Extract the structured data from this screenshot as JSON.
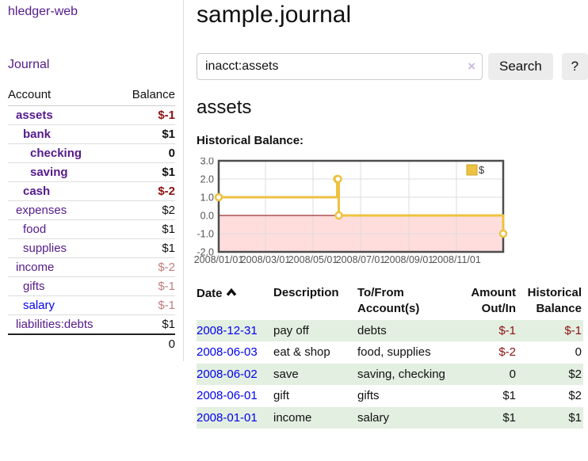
{
  "app": {
    "brand": "hledger-web",
    "nav_journal": "Journal"
  },
  "colors": {
    "purple": "#551a8b",
    "blue": "#0000ee",
    "negative_red": "#8b1111",
    "faded_red": "#c27d7d",
    "stripe_green": "#e3efe1",
    "chart_yellow": "#edc240"
  },
  "sidebar": {
    "columns": {
      "account": "Account",
      "balance": "Balance"
    },
    "accounts": [
      {
        "name": "assets",
        "depth": 0,
        "bold": true,
        "balance": "$-1",
        "balance_style": "neg-bold"
      },
      {
        "name": "bank",
        "depth": 1,
        "bold": true,
        "balance": "$1",
        "balance_style": "pos-bold"
      },
      {
        "name": "checking",
        "depth": 2,
        "bold": true,
        "balance": "0",
        "balance_style": "pos-bold"
      },
      {
        "name": "saving",
        "depth": 2,
        "bold": true,
        "balance": "$1",
        "balance_style": "pos-bold"
      },
      {
        "name": "cash",
        "depth": 1,
        "bold": true,
        "balance": "$-2",
        "balance_style": "neg-bold"
      },
      {
        "name": "expenses",
        "depth": 0,
        "bold": false,
        "balance": "$2",
        "balance_style": "pos"
      },
      {
        "name": "food",
        "depth": 1,
        "bold": false,
        "balance": "$1",
        "balance_style": "pos"
      },
      {
        "name": "supplies",
        "depth": 1,
        "bold": false,
        "balance": "$1",
        "balance_style": "pos"
      },
      {
        "name": "income",
        "depth": 0,
        "bold": false,
        "balance": "$-2",
        "balance_style": "neg-faded"
      },
      {
        "name": "gifts",
        "depth": 1,
        "bold": false,
        "balance": "$-1",
        "balance_style": "neg-faded"
      },
      {
        "name": "salary",
        "depth": 1,
        "bold": false,
        "link_blue": true,
        "balance": "$-1",
        "balance_style": "neg-faded"
      },
      {
        "name": "liabilities:debts",
        "depth": 0,
        "bold": false,
        "balance": "$1",
        "balance_style": "pos"
      }
    ],
    "total": "0"
  },
  "header": {
    "title": "sample.journal"
  },
  "search": {
    "value": "inacct:assets",
    "clear_icon": "×",
    "button_label": "Search",
    "help_label": "?"
  },
  "account_page": {
    "title": "assets",
    "chart_label": "Historical Balance:"
  },
  "chart_data": {
    "type": "line",
    "style": "step",
    "title": "Historical Balance",
    "legend": [
      {
        "label": "$",
        "color": "#edc240"
      }
    ],
    "legend_position": "top-right",
    "series": [
      {
        "name": "$",
        "color": "#edc240",
        "points": [
          {
            "x": "2008-01-01",
            "y": 1
          },
          {
            "x": "2008-06-01",
            "y": 2
          },
          {
            "x": "2008-06-02",
            "y": 2
          },
          {
            "x": "2008-06-03",
            "y": 0
          },
          {
            "x": "2008-12-31",
            "y": -1
          }
        ]
      }
    ],
    "xmin": "2008-01-01",
    "xmax": "2008-12-31",
    "ylim": [
      -2,
      3
    ],
    "yticks": [
      "3.0",
      "2.0",
      "1.0",
      "0.0",
      "-1.0",
      "-2.0"
    ],
    "xticks": [
      "2008/01/01",
      "2008/03/01",
      "2008/05/01",
      "2008/07/01",
      "2008/09/01",
      "2008/11/01"
    ],
    "grid": true,
    "negative_region_color": "#ffdddd",
    "zero_line_color": "#993333",
    "tick_color": "#545454"
  },
  "register": {
    "columns": {
      "date": "Date",
      "description": "Description",
      "accounts": "To/From Account(s)",
      "amount": "Amount Out/In",
      "balance": "Historical Balance"
    },
    "sort": {
      "column": "date",
      "direction": "asc"
    },
    "rows": [
      {
        "date": "2008-12-31",
        "description": "pay off",
        "accounts": "debts",
        "amount": "$-1",
        "balance": "$-1",
        "stripe": true
      },
      {
        "date": "2008-06-03",
        "description": "eat & shop",
        "accounts": "food, supplies",
        "amount": "$-2",
        "balance": "0",
        "stripe": false
      },
      {
        "date": "2008-06-02",
        "description": "save",
        "accounts": "saving, checking",
        "amount": "0",
        "balance": "$2",
        "stripe": true
      },
      {
        "date": "2008-06-01",
        "description": "gift",
        "accounts": "gifts",
        "amount": "$1",
        "balance": "$2",
        "stripe": false
      },
      {
        "date": "2008-01-01",
        "description": "income",
        "accounts": "salary",
        "amount": "$1",
        "balance": "$1",
        "stripe": true
      }
    ]
  }
}
